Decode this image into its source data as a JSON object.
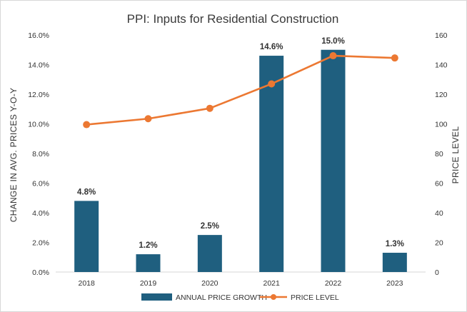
{
  "chart_data": {
    "type": "bar+line",
    "title": "PPI: Inputs for Residential Construction",
    "categories": [
      "2018",
      "2019",
      "2020",
      "2021",
      "2022",
      "2023"
    ],
    "series": [
      {
        "name": "ANNUAL PRICE GROWTH",
        "type": "bar",
        "axis": "left",
        "values": [
          4.8,
          1.2,
          2.5,
          14.6,
          15.0,
          1.3
        ],
        "labels": [
          "4.8%",
          "1.2%",
          "2.5%",
          "14.6%",
          "15.0%",
          "1.3%"
        ],
        "color": "#1f5f7f"
      },
      {
        "name": "PRICE LEVEL",
        "type": "line",
        "axis": "right",
        "values": [
          99.5,
          103.5,
          110.5,
          127,
          146,
          144.5
        ],
        "color": "#ec7832"
      }
    ],
    "ylabel": "CHANGE IN AVG. PRICES Y-O-Y",
    "ylabel_right": "PRICE LEVEL",
    "xlabel": "",
    "ylim": [
      0,
      16
    ],
    "ylim_right": [
      0,
      160
    ],
    "yticks": [
      "0.0%",
      "2.0%",
      "4.0%",
      "6.0%",
      "8.0%",
      "10.0%",
      "12.0%",
      "14.0%",
      "16.0%"
    ],
    "yticks_right": [
      "0",
      "20",
      "40",
      "60",
      "80",
      "100",
      "120",
      "140",
      "160"
    ],
    "grid": false,
    "legend_position": "bottom"
  }
}
